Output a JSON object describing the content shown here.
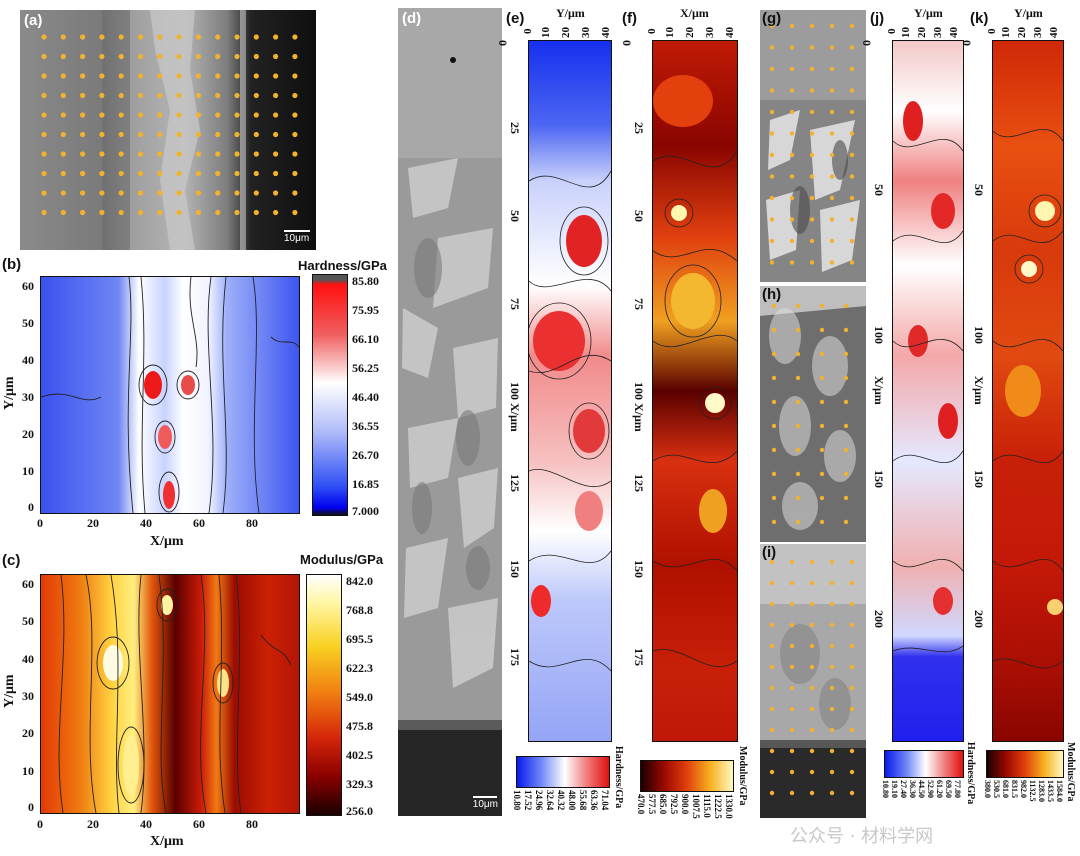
{
  "panels": {
    "a": {
      "label": "(a)",
      "scale": "10μm"
    },
    "b": {
      "label": "(b)",
      "cb_title": "Hardness/GPa",
      "cb_ticks": [
        "85.80",
        "75.95",
        "66.10",
        "56.25",
        "46.40",
        "36.55",
        "26.70",
        "16.85",
        "7.000"
      ],
      "xlabel": "X/μm",
      "ylabel": "Y/μm",
      "xticks": [
        "0",
        "20",
        "40",
        "60",
        "80"
      ],
      "yticks": [
        "60",
        "50",
        "40",
        "30",
        "20",
        "10",
        "0"
      ]
    },
    "c": {
      "label": "(c)",
      "cb_title": "Modulus/GPa",
      "cb_ticks": [
        "842.0",
        "768.8",
        "695.5",
        "622.3",
        "549.0",
        "475.8",
        "402.5",
        "329.3",
        "256.0"
      ],
      "xlabel": "X/μm",
      "ylabel": "Y/μm",
      "xticks": [
        "0",
        "20",
        "40",
        "60",
        "80"
      ],
      "yticks": [
        "60",
        "50",
        "40",
        "30",
        "20",
        "10",
        "0"
      ]
    },
    "d": {
      "label": "(d)",
      "scale": "10μm"
    },
    "e": {
      "label": "(e)",
      "top_axis": "Y/μm",
      "top_ticks": [
        "0",
        "10",
        "20",
        "30",
        "40"
      ],
      "side_ticks": [
        "0",
        "25",
        "50",
        "75",
        "100 X/μm",
        "125",
        "150",
        "175"
      ],
      "cb_title": "Hardness/GPa",
      "cb_ticks": [
        "10.80",
        "17.52",
        "24.96",
        "32.64",
        "40.32",
        "48.00",
        "55.68",
        "63.36",
        "71.04"
      ]
    },
    "f": {
      "label": "(f)",
      "top_axis": "X/μm",
      "top_ticks": [
        "0",
        "10",
        "20",
        "30",
        "40"
      ],
      "side_ticks": [
        "0",
        "25",
        "50",
        "75",
        "100 X/μm",
        "125",
        "150",
        "175"
      ],
      "cb_title": "Modulus/GPa",
      "cb_ticks": [
        "470.0",
        "577.5",
        "685.0",
        "792.5",
        "900.0",
        "1007.5",
        "1115.0",
        "1222.5",
        "1330.0"
      ]
    },
    "g": {
      "label": "(g)"
    },
    "h": {
      "label": "(h)"
    },
    "i": {
      "label": "(i)"
    },
    "j": {
      "label": "(j)",
      "top_axis": "Y/μm",
      "top_ticks": [
        "0",
        "10",
        "20",
        "30",
        "40"
      ],
      "side_ticks": [
        "0",
        "50",
        "100",
        "X/μm",
        "150",
        "200"
      ],
      "cb_title": "Hardness/GPa",
      "cb_ticks": [
        "10.80",
        "19.10",
        "27.40",
        "36.30",
        "44.50",
        "52.90",
        "61.20",
        "69.50",
        "77.80"
      ]
    },
    "k": {
      "label": "(k)",
      "top_axis": "Y/μm",
      "top_ticks": [
        "0",
        "10",
        "20",
        "30",
        "40"
      ],
      "side_ticks": [
        "0",
        "50",
        "100",
        "X/μm",
        "150",
        "200"
      ],
      "cb_title": "Modulus/GPa",
      "cb_ticks": [
        "380.0",
        "530.5",
        "681.0",
        "831.5",
        "982.0",
        "1132.5",
        "1283.0",
        "1433.5",
        "1584.0"
      ]
    }
  },
  "watermark": "公众号 · 材料学网",
  "colors": {
    "dot": "#f2b230",
    "hard_low": "#1a1aff",
    "hard_high": "#ee1111",
    "mod_low": "#2a0000",
    "mod_high": "#ffffcc"
  }
}
